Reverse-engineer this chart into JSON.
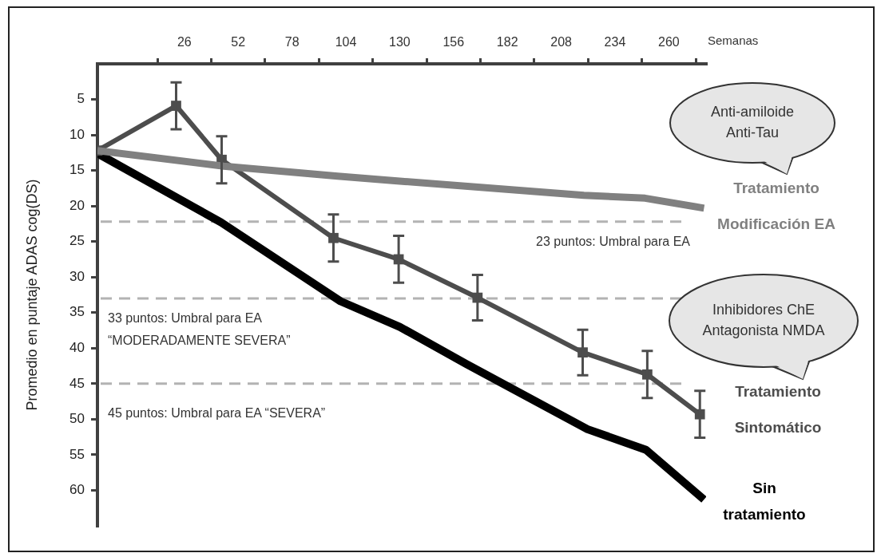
{
  "chart_data": {
    "type": "line",
    "xlabel": "Semanas",
    "ylabel": "Promedio en puntaje ADAS cog(DS)",
    "xlim": [
      -16,
      278
    ],
    "xticks": [
      {
        "value": 13,
        "label": null
      },
      26,
      {
        "value": 39,
        "label": null
      },
      52,
      {
        "value": 65,
        "label": null
      },
      78,
      {
        "value": 91,
        "label": null
      },
      104,
      {
        "value": 117,
        "label": null
      },
      130,
      {
        "value": 143,
        "label": null
      },
      156,
      {
        "value": 169,
        "label": null
      },
      182,
      {
        "value": 195,
        "label": null
      },
      208,
      {
        "value": 221,
        "label": null
      },
      234,
      {
        "value": 247,
        "label": null
      },
      260,
      {
        "value": 273,
        "label": null
      }
    ],
    "ylim": [
      65,
      0
    ],
    "yticks": [
      5,
      10,
      15,
      20,
      25,
      30,
      35,
      40,
      45,
      50,
      55,
      60
    ],
    "grid": false,
    "legend": false,
    "series": [
      {
        "name": "Tratamiento Modificación EA",
        "color": "#808080",
        "marker": "none",
        "x": [
          -16,
          45,
          100,
          130,
          219,
          248.5,
          277
        ],
        "values": [
          12.2,
          14.4,
          15.8,
          16.5,
          18.5,
          18.9,
          20.3
        ]
      },
      {
        "name": "Tratamiento Sintomático",
        "color": "#4d4d4d",
        "marker": "square",
        "x": [
          -16,
          22,
          44,
          98,
          129.5,
          167.6,
          218.4,
          249.6,
          275
        ],
        "values": [
          12.2,
          5.9,
          13.5,
          24.5,
          27.5,
          32.9,
          40.6,
          43.7,
          49.3
        ],
        "errors": [
          null,
          3.3,
          3.3,
          3.3,
          3.3,
          3.2,
          3.2,
          3.3,
          3.3
        ]
      },
      {
        "name": "Sin tratamiento",
        "color": "#000000",
        "marker": "none",
        "x": [
          -16,
          43.7,
          101.4,
          130,
          162,
          220.7,
          249,
          277
        ],
        "values": [
          12.6,
          22.3,
          33.4,
          37,
          42.2,
          51.4,
          54.3,
          61.3
        ]
      }
    ],
    "ref_lines": [
      {
        "axis": "y",
        "value": 22.2,
        "label": "23 puntos: Umbral para EA",
        "color": "#b3b3b3",
        "line_style": "dashed"
      },
      {
        "axis": "y",
        "value": 33,
        "label": "33 puntos: Umbral para EA “MODERADAMENTE SEVERA”",
        "color": "#b3b3b3",
        "line_style": "dashed"
      },
      {
        "axis": "y",
        "value": 45,
        "label": "45 puntos: Umbral para EA “SEVERA”",
        "color": "#b3b3b3",
        "line_style": "dashed"
      }
    ],
    "annotations": [
      "Anti-amiloide Anti-Tau",
      "Inhibidores ChE Antagonista NMDA"
    ]
  }
}
